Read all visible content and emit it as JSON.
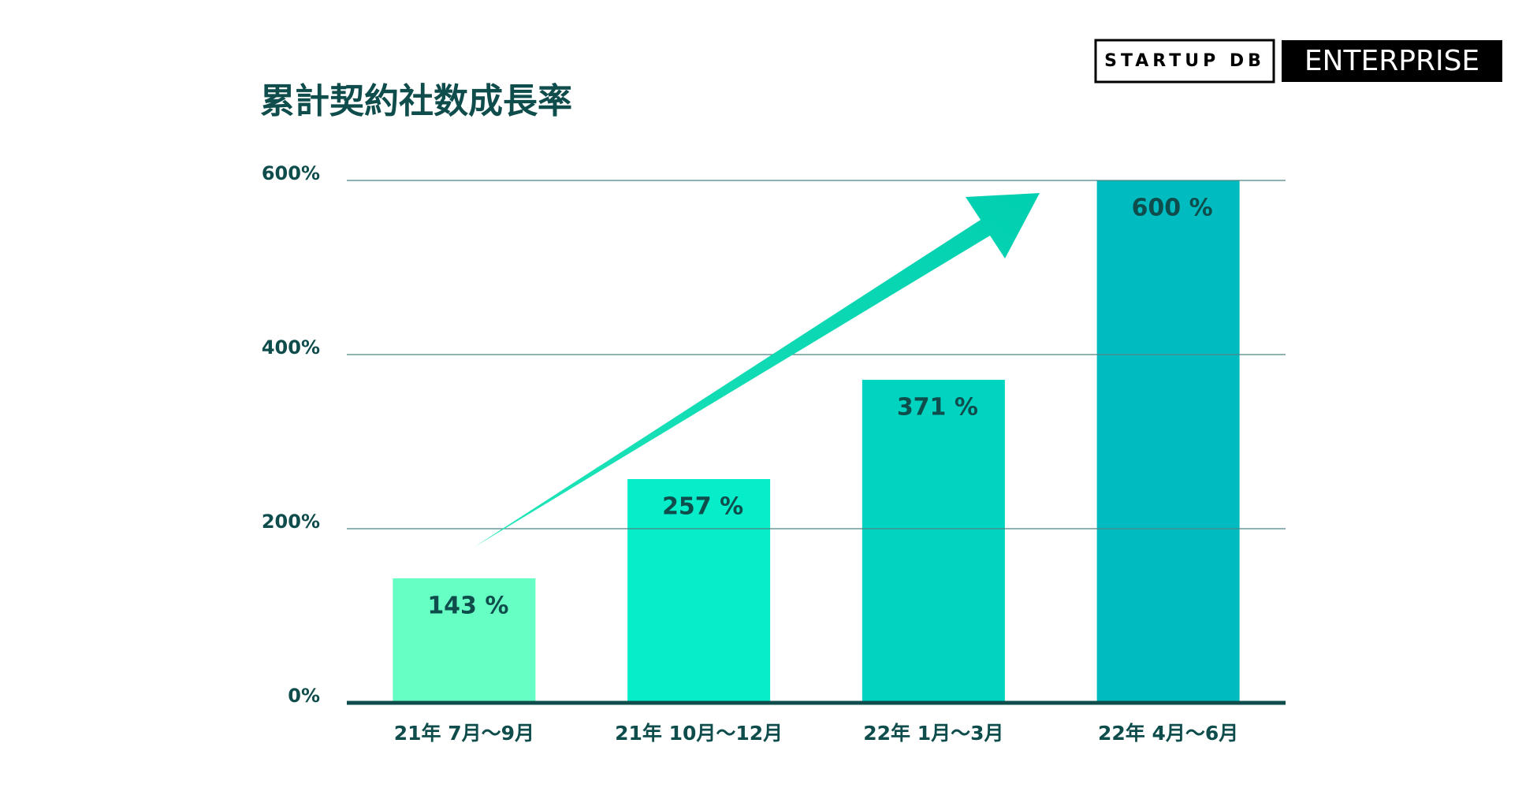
{
  "logo": {
    "left": "STARTUP DB",
    "right": "ENTERPRISE"
  },
  "chart_data": {
    "type": "bar",
    "title": "累計契約社数成長率",
    "categories": [
      "21年 7月〜9月",
      "21年 10月〜12月",
      "22年 1月〜3月",
      "22年 4月〜6月"
    ],
    "values": [
      143,
      257,
      371,
      600
    ],
    "value_labels": [
      "143 %",
      "257 %",
      "371 %",
      "600 %"
    ],
    "colors": [
      "#66ffc4",
      "#05edc9",
      "#00d3c0",
      "#00bcc0"
    ],
    "ylim": [
      0,
      600
    ],
    "yticks": [
      {
        "value": 0,
        "label": "0%"
      },
      {
        "value": 200,
        "label": "200%"
      },
      {
        "value": 400,
        "label": "400%"
      },
      {
        "value": 600,
        "label": "600%"
      }
    ],
    "grid": true
  }
}
